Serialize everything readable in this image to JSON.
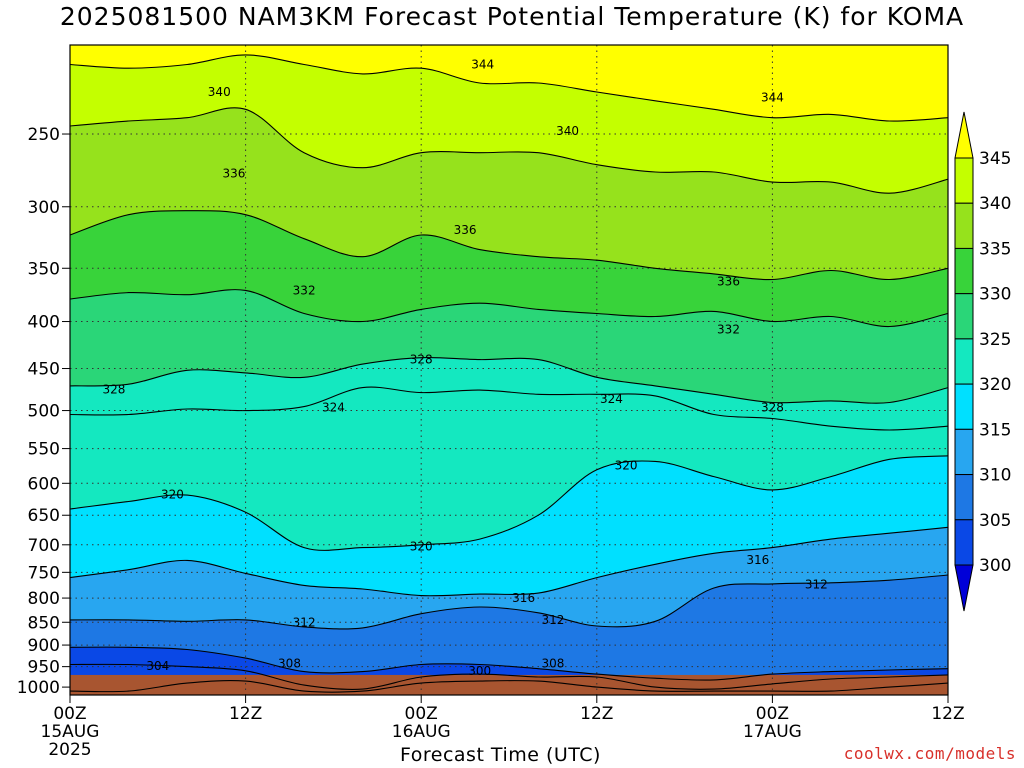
{
  "title": "2025081500 NAM3KM Forecast Potential Temperature (K) for KOMA",
  "xlabel": "Forecast Time (UTC)",
  "credit": "coolwx.com/models",
  "chart_data": {
    "type": "heatmap",
    "title": "2025081500 NAM3KM Forecast Potential Temperature (K) for KOMA",
    "xlabel": "Forecast Time (UTC)",
    "ylabel": "",
    "x_ticks": [
      {
        "hour": 0,
        "label": "00Z",
        "sub1": "15AUG",
        "sub2": "2025"
      },
      {
        "hour": 12,
        "label": "12Z",
        "sub1": "",
        "sub2": ""
      },
      {
        "hour": 24,
        "label": "00Z",
        "sub1": "16AUG",
        "sub2": ""
      },
      {
        "hour": 36,
        "label": "12Z",
        "sub1": "",
        "sub2": ""
      },
      {
        "hour": 48,
        "label": "00Z",
        "sub1": "17AUG",
        "sub2": ""
      },
      {
        "hour": 60,
        "label": "12Z",
        "sub1": "",
        "sub2": ""
      }
    ],
    "xlim": [
      0,
      60
    ],
    "y_ticks": [
      250,
      300,
      350,
      400,
      450,
      500,
      550,
      600,
      650,
      700,
      750,
      800,
      850,
      900,
      950,
      1000
    ],
    "ylim": [
      200,
      1020
    ],
    "yscale": "log-pressure (inverted)",
    "colorbar": {
      "levels": [
        300,
        305,
        310,
        315,
        320,
        325,
        330,
        335,
        340,
        345
      ],
      "colors": [
        "#0000d8",
        "#0a48e6",
        "#1e78e4",
        "#28a6f0",
        "#00e0ff",
        "#14e8c0",
        "#2ad678",
        "#38d33a",
        "#96e21c",
        "#c4ff00",
        "#ffff00"
      ],
      "extend": "both"
    },
    "terrain_color": "#a85530",
    "surface_pressure": 970,
    "grid": "dotted",
    "times": [
      0,
      4,
      8,
      12,
      16,
      20,
      24,
      28,
      32,
      36,
      40,
      44,
      48,
      52,
      56,
      60
    ],
    "theta_contours": [
      {
        "value": 300,
        "pressures": [
          1010,
          1010,
          990,
          985,
          1010,
          1010,
          990,
          985,
          985,
          1000,
          1010,
          1010,
          1010,
          1010,
          1000,
          990
        ]
      },
      {
        "value": 304,
        "pressures": [
          945,
          945,
          950,
          960,
          995,
          1005,
          975,
          968,
          975,
          975,
          1000,
          1005,
          992,
          980,
          975,
          970
        ]
      },
      {
        "value": 308,
        "pressures": [
          905,
          905,
          910,
          930,
          962,
          962,
          945,
          945,
          955,
          968,
          978,
          982,
          968,
          962,
          958,
          955
        ]
      },
      {
        "value": 312,
        "pressures": [
          845,
          845,
          848,
          845,
          860,
          862,
          832,
          818,
          830,
          858,
          848,
          780,
          772,
          770,
          765,
          755
        ]
      },
      {
        "value": 316,
        "pressures": [
          760,
          745,
          728,
          752,
          775,
          782,
          795,
          792,
          790,
          760,
          735,
          715,
          705,
          690,
          680,
          670
        ]
      },
      {
        "value": 320,
        "pressures": [
          640,
          628,
          618,
          645,
          705,
          705,
          700,
          690,
          650,
          580,
          568,
          590,
          610,
          590,
          565,
          560
        ]
      },
      {
        "value": 324,
        "pressures": [
          505,
          505,
          498,
          500,
          495,
          472,
          478,
          475,
          480,
          480,
          482,
          505,
          510,
          520,
          525,
          520
        ]
      },
      {
        "value": 328,
        "pressures": [
          470,
          468,
          452,
          455,
          460,
          445,
          438,
          440,
          440,
          460,
          470,
          480,
          490,
          488,
          490,
          472
        ]
      },
      {
        "value": 332,
        "pressures": [
          378,
          372,
          374,
          370,
          392,
          400,
          388,
          382,
          388,
          392,
          395,
          390,
          400,
          395,
          405,
          392
        ]
      },
      {
        "value": 336,
        "pressures": [
          322,
          306,
          303,
          306,
          325,
          340,
          322,
          334,
          340,
          343,
          350,
          355,
          360,
          352,
          360,
          350
        ]
      },
      {
        "value": 340,
        "pressures": [
          245,
          242,
          240,
          235,
          262,
          272,
          262,
          262,
          262,
          270,
          275,
          275,
          282,
          282,
          290,
          280
        ]
      },
      {
        "value": 344,
        "pressures": [
          210,
          212,
          210,
          205,
          210,
          215,
          212,
          220,
          220,
          225,
          230,
          235,
          240,
          238,
          242,
          240
        ]
      }
    ],
    "contour_labels": [
      {
        "value": "344",
        "hour": 28.2,
        "p": 210
      },
      {
        "value": "344",
        "hour": 48.0,
        "p": 228
      },
      {
        "value": "340",
        "hour": 10.2,
        "p": 225
      },
      {
        "value": "340",
        "hour": 34.0,
        "p": 248
      },
      {
        "value": "336",
        "hour": 11.2,
        "p": 276
      },
      {
        "value": "336",
        "hour": 27.0,
        "p": 318
      },
      {
        "value": "336",
        "hour": 45.0,
        "p": 362
      },
      {
        "value": "332",
        "hour": 16.0,
        "p": 370
      },
      {
        "value": "332",
        "hour": 45.0,
        "p": 408
      },
      {
        "value": "328",
        "hour": 3.0,
        "p": 474
      },
      {
        "value": "328",
        "hour": 24.0,
        "p": 440
      },
      {
        "value": "328",
        "hour": 48.0,
        "p": 496
      },
      {
        "value": "324",
        "hour": 18.0,
        "p": 496
      },
      {
        "value": "324",
        "hour": 37.0,
        "p": 486
      },
      {
        "value": "320",
        "hour": 7.0,
        "p": 617
      },
      {
        "value": "320",
        "hour": 24.0,
        "p": 703
      },
      {
        "value": "320",
        "hour": 38.0,
        "p": 574
      },
      {
        "value": "316",
        "hour": 47.0,
        "p": 727
      },
      {
        "value": "316",
        "hour": 31.0,
        "p": 800
      },
      {
        "value": "312",
        "hour": 16.0,
        "p": 850
      },
      {
        "value": "312",
        "hour": 33.0,
        "p": 845
      },
      {
        "value": "312",
        "hour": 51.0,
        "p": 773
      },
      {
        "value": "308",
        "hour": 15.0,
        "p": 943
      },
      {
        "value": "308",
        "hour": 33.0,
        "p": 943
      },
      {
        "value": "304",
        "hour": 6.0,
        "p": 948
      },
      {
        "value": "300",
        "hour": 28.0,
        "p": 960
      }
    ]
  }
}
